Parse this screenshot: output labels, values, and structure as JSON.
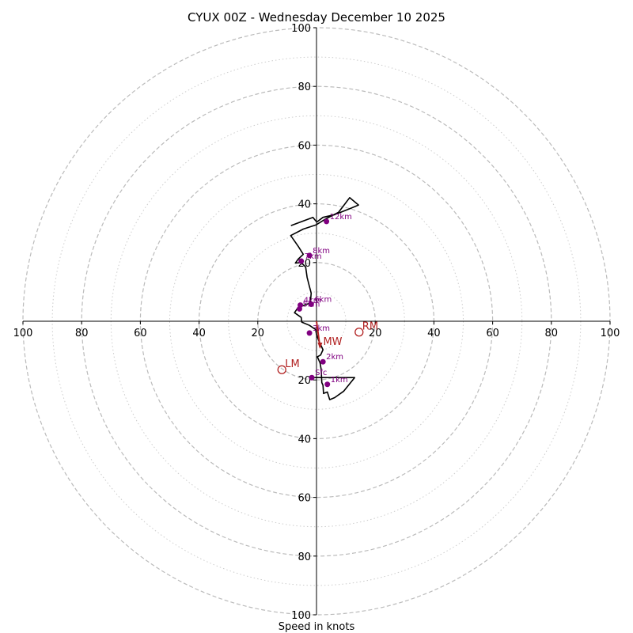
{
  "chart_data": {
    "type": "hodograph",
    "title": "CYUX 00Z - Wednesday December 10 2025",
    "xlabel": "Speed in knots",
    "units": "knots",
    "range": [
      -100,
      100
    ],
    "rings_dashed": [
      20,
      40,
      60,
      80,
      100
    ],
    "rings_dotted": [
      10,
      30,
      50,
      70,
      90
    ],
    "x_ticks": [
      {
        "value": -100,
        "label": "100"
      },
      {
        "value": -80,
        "label": "80"
      },
      {
        "value": -60,
        "label": "60"
      },
      {
        "value": -40,
        "label": "40"
      },
      {
        "value": -20,
        "label": "20"
      },
      {
        "value": 20,
        "label": "20"
      },
      {
        "value": 40,
        "label": "40"
      },
      {
        "value": 60,
        "label": "60"
      },
      {
        "value": 80,
        "label": "80"
      },
      {
        "value": 100,
        "label": "100"
      }
    ],
    "y_ticks": [
      {
        "value": 100,
        "label": "100"
      },
      {
        "value": 80,
        "label": "80"
      },
      {
        "value": 60,
        "label": "60"
      },
      {
        "value": 40,
        "label": "40"
      },
      {
        "value": 20,
        "label": "20"
      },
      {
        "value": -20,
        "label": "20"
      },
      {
        "value": -40,
        "label": "40"
      },
      {
        "value": -60,
        "label": "60"
      },
      {
        "value": -80,
        "label": "80"
      },
      {
        "value": -100,
        "label": "100"
      }
    ],
    "trace": [
      [
        -1.6,
        -19.2
      ],
      [
        0.8,
        -19.2
      ],
      [
        13,
        -19.2
      ],
      [
        9.3,
        -23.8
      ],
      [
        6.2,
        -26
      ],
      [
        4.5,
        -26.7
      ],
      [
        3.7,
        -24.1
      ],
      [
        2.4,
        -24.6
      ],
      [
        2.2,
        -21.8
      ],
      [
        1.8,
        -20.9
      ],
      [
        1.6,
        -16.4
      ],
      [
        1.2,
        -14.2
      ],
      [
        0.3,
        -12.1
      ],
      [
        1.4,
        -11.5
      ],
      [
        2.2,
        -9.7
      ],
      [
        0.8,
        -6.7
      ],
      [
        0,
        -4.5
      ],
      [
        -0.3,
        -2.8
      ],
      [
        -2.4,
        -1.4
      ],
      [
        -5,
        -0.3
      ],
      [
        -5.2,
        1.3
      ],
      [
        -7.5,
        2.9
      ],
      [
        -6.2,
        4.8
      ],
      [
        -4.2,
        5.5
      ],
      [
        -2.1,
        6.2
      ],
      [
        -1.8,
        9.6
      ],
      [
        -2.5,
        12.2
      ],
      [
        -3.2,
        15
      ],
      [
        -3.7,
        18.5
      ],
      [
        -5.2,
        20
      ],
      [
        -7.2,
        19.8
      ],
      [
        -6.2,
        21.2
      ],
      [
        -4.5,
        22.8
      ],
      [
        -6.2,
        25.5
      ],
      [
        -8.8,
        29.2
      ],
      [
        -4.5,
        31.4
      ],
      [
        -0.2,
        32.8
      ],
      [
        3.2,
        34.9
      ],
      [
        7.5,
        37.1
      ],
      [
        9.7,
        40
      ],
      [
        11.3,
        42.1
      ],
      [
        14.3,
        39.6
      ],
      [
        11.5,
        38.4
      ],
      [
        6.2,
        36.3
      ],
      [
        2.2,
        35.4
      ],
      [
        0.1,
        33.8
      ],
      [
        -0.5,
        34.5
      ],
      [
        -1.2,
        35.4
      ],
      [
        -8.7,
        32.6
      ]
    ],
    "height_markers": [
      {
        "label": "Sfc",
        "u": -1.6,
        "v": -19.2
      },
      {
        "label": "1km",
        "u": 3.7,
        "v": -21.5
      },
      {
        "label": "2km",
        "u": 2.2,
        "v": -13.8
      },
      {
        "label": "3km",
        "u": -2.4,
        "v": -4
      },
      {
        "label": "4km",
        "u": -5.5,
        "v": 5.5
      },
      {
        "label": "5km",
        "u": -5.8,
        "v": 4.2
      },
      {
        "label": "6km",
        "u": -1.8,
        "v": 5.8
      },
      {
        "label": "7km",
        "u": -5.2,
        "v": 20.5
      },
      {
        "label": "8km",
        "u": -2.4,
        "v": 22.4
      },
      {
        "label": "12km",
        "u": 3.4,
        "v": 34
      }
    ],
    "storm_motion": [
      {
        "label": "RM",
        "u": 14.5,
        "v": -3.7
      },
      {
        "label": "LM",
        "u": -11.8,
        "v": -16.5
      },
      {
        "label": "MW",
        "u": 1.2,
        "v": -8.9
      }
    ]
  },
  "colors": {
    "trace": "#000000",
    "markers": "#800080",
    "storm_motion": "#b22222",
    "grid": "#bbbbbb",
    "axes": "#000000",
    "background": "#ffffff"
  }
}
